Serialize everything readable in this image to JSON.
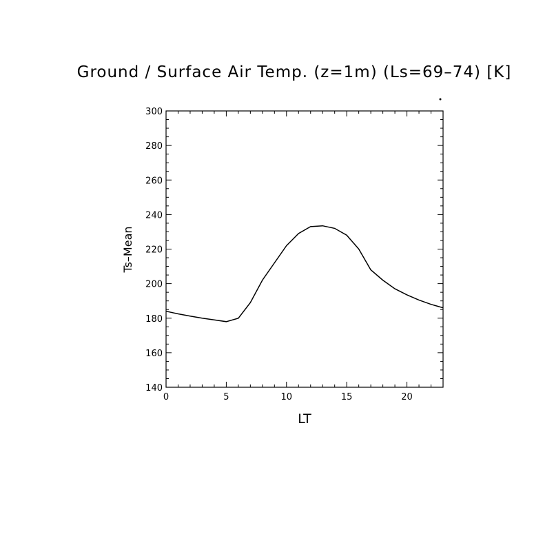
{
  "chart_data": {
    "type": "line",
    "title": "Ground / Surface Air Temp. (z=1m) (Ls=69–74) [K]",
    "xlabel": "LT",
    "ylabel": "Ts–Mean",
    "xlim": [
      0,
      23
    ],
    "ylim": [
      140,
      300
    ],
    "x_ticks": [
      0,
      5,
      10,
      15,
      20
    ],
    "y_ticks": [
      140,
      160,
      180,
      200,
      220,
      240,
      260,
      280,
      300
    ],
    "grid": false,
    "series": [
      {
        "x": [
          0,
          1,
          2,
          3,
          4,
          5,
          6,
          7,
          8,
          9,
          10,
          11,
          12,
          13,
          14,
          15,
          16,
          17,
          18,
          19,
          20,
          21,
          22,
          23
        ],
        "values": [
          184,
          182.5,
          181.2,
          180,
          179,
          178,
          180,
          189,
          202,
          212,
          222,
          229,
          233,
          233.5,
          232,
          228,
          220,
          208,
          202,
          197,
          193.5,
          190.5,
          188,
          186
        ]
      }
    ]
  }
}
